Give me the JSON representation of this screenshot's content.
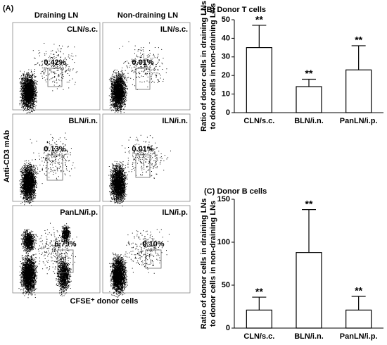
{
  "panel_a": {
    "label": "(A)",
    "columns": [
      "Draining LN",
      "Non-draining LN"
    ],
    "y_label": "Anti-CD3 mAb",
    "x_label": "CFSE⁺ donor cells",
    "panels": [
      {
        "label": "CLN/s.c.",
        "gate": "0.42%"
      },
      {
        "label": "ILN/s.c.",
        "gate": "0.01%"
      },
      {
        "label": "BLN/i.n.",
        "gate": "0.13%"
      },
      {
        "label": "ILN/i.n.",
        "gate": "0.01%"
      },
      {
        "label": "PanLN/i.p.",
        "gate": "6.79%"
      },
      {
        "label": "ILN/i.p.",
        "gate": "0.10%"
      }
    ]
  },
  "chart_data": [
    {
      "type": "bar",
      "title": "(B) Donor T cells",
      "y_label": [
        "Ratio of donor cells in draining LNs",
        "to donor cells in non-draining LNs"
      ],
      "categories": [
        "CLN/s.c.",
        "BLN/i.n.",
        "PanLN/i.p."
      ],
      "values": [
        35,
        14,
        23
      ],
      "errors": [
        12,
        4,
        13
      ],
      "annotations": [
        "**",
        "**",
        "**"
      ],
      "color": "#ffffff",
      "ylim": [
        0,
        50
      ],
      "yticks": [
        0,
        10,
        20,
        30,
        40,
        50
      ]
    },
    {
      "type": "bar",
      "title": "(C) Donor B cells",
      "y_label": [
        "Ratio of donor cells in draining LNs",
        "to donor cells in non-draining LNs"
      ],
      "categories": [
        "CLN/s.c.",
        "BLN/i.n.",
        "PanLN/i.p."
      ],
      "values": [
        21,
        88,
        21
      ],
      "errors": [
        15,
        50,
        16
      ],
      "annotations": [
        "**",
        "**",
        "**"
      ],
      "color": "#ffffff",
      "ylim": [
        0,
        150
      ],
      "yticks": [
        0,
        50,
        100,
        150
      ]
    }
  ]
}
